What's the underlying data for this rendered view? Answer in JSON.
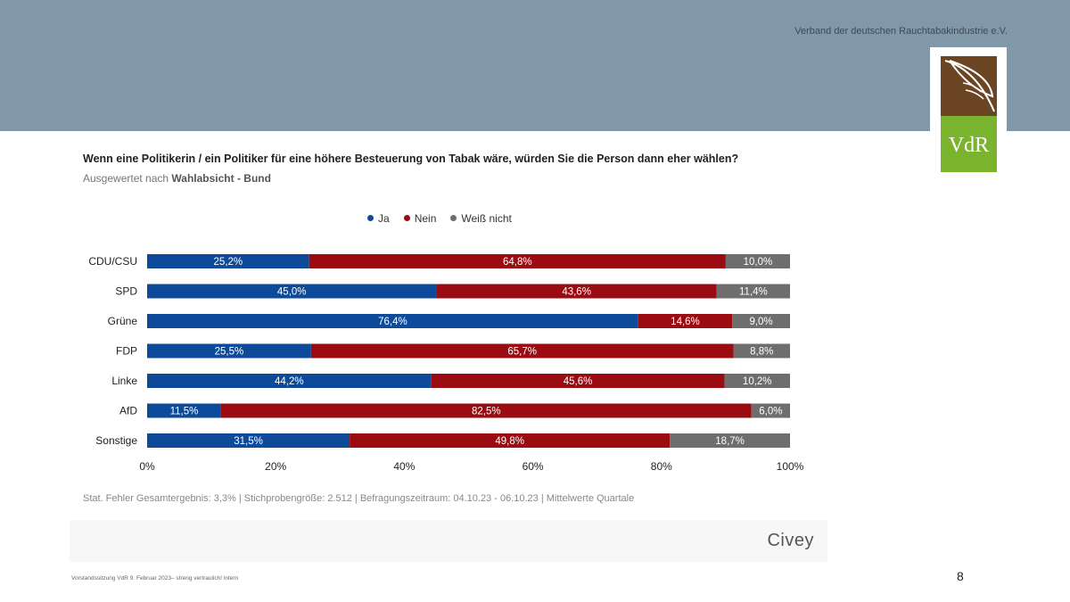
{
  "header": {
    "organization": "Verband der deutschen Rauchtabakindustrie e.V.",
    "logo_text": "VdR"
  },
  "colors": {
    "ja": "#0d4b9a",
    "nein": "#9b0c12",
    "weiss_nicht": "#6e6e6e",
    "banner": "#8098a8"
  },
  "chart_data": {
    "type": "bar",
    "stacked": true,
    "orientation": "horizontal",
    "title": "Wenn eine Politikerin / ein Politiker für eine höhere Besteuerung von Tabak wäre, würden Sie die Person dann eher wählen?",
    "subtitle_prefix": "Ausgewertet nach ",
    "subtitle_bold": "Wahlabsicht - Bund",
    "categories": [
      "CDU/CSU",
      "SPD",
      "Grüne",
      "FDP",
      "Linke",
      "AfD",
      "Sonstige"
    ],
    "series": [
      {
        "name": "Ja",
        "values": [
          25.2,
          45.0,
          76.4,
          25.5,
          44.2,
          11.5,
          31.5
        ],
        "labels": [
          "25,2%",
          "45,0%",
          "76,4%",
          "25,5%",
          "44,2%",
          "11,5%",
          "31,5%"
        ]
      },
      {
        "name": "Nein",
        "values": [
          64.8,
          43.6,
          14.6,
          65.7,
          45.6,
          82.5,
          49.8
        ],
        "labels": [
          "64,8%",
          "43,6%",
          "14,6%",
          "65,7%",
          "45,6%",
          "82,5%",
          "49,8%"
        ]
      },
      {
        "name": "Weiß nicht",
        "values": [
          10.0,
          11.4,
          9.0,
          8.8,
          10.2,
          6.0,
          18.7
        ],
        "labels": [
          "10,0%",
          "11,4%",
          "9,0%",
          "8,8%",
          "10,2%",
          "6,0%",
          "18,7%"
        ]
      }
    ],
    "xlim": [
      0,
      100
    ],
    "xticks": [
      "0%",
      "20%",
      "40%",
      "60%",
      "80%",
      "100%"
    ],
    "legend_position": "top",
    "grid": false
  },
  "footnote": "Stat. Fehler Gesamtergebnis: 3,3% | Stichprobengröße: 2.512 | Befragungszeitraum: 04.10.23 - 06.10.23 | Mittelwerte Quartale",
  "source": "Civey",
  "footer": {
    "text": "Vorstandssitzung VdR 9. Februar 2023– streng vertraulich! intern",
    "page": "8"
  }
}
